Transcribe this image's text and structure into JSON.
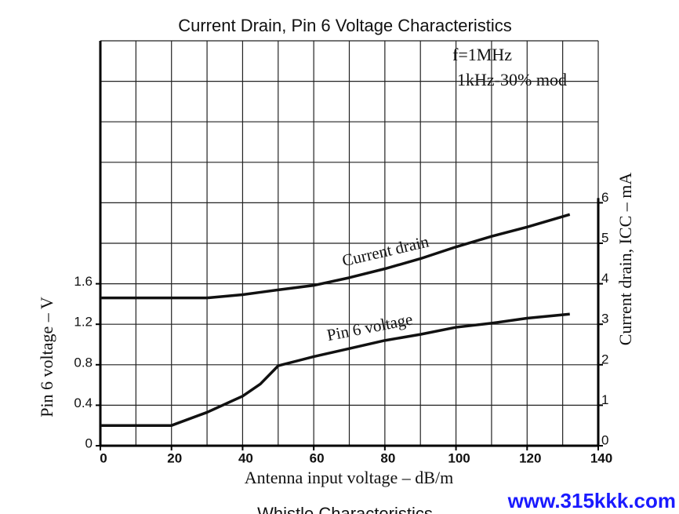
{
  "chart_data": {
    "type": "line",
    "top_cut_text": "Whistle Characteristics",
    "title": "Current Drain, Pin 6 Voltage Characteristics",
    "xlabel": "Antenna input voltage  –  dB/m",
    "ylabel": "Pin 6 voltage  –  V",
    "y2label": "Current drain, ICC  –  mA",
    "annotations": [
      "f=1MHz",
      "1kHz-30% mod"
    ],
    "watermark": "www.315kkk.com",
    "x": [
      0,
      10,
      20,
      30,
      40,
      45,
      50,
      60,
      70,
      80,
      90,
      100,
      110,
      120,
      132
    ],
    "series": [
      {
        "name": "Current drain",
        "color": "#111111",
        "axis": "y2",
        "values": [
          3.65,
          3.65,
          3.65,
          3.65,
          3.73,
          3.79,
          3.85,
          3.96,
          4.15,
          4.37,
          4.62,
          4.91,
          5.17,
          5.4,
          5.71
        ]
      },
      {
        "name": "Pin 6 voltage",
        "color": "#111111",
        "axis": "y",
        "values": [
          0.2,
          0.2,
          0.2,
          0.33,
          0.49,
          0.61,
          0.79,
          0.88,
          0.96,
          1.04,
          1.1,
          1.17,
          1.21,
          1.26,
          1.3
        ]
      }
    ],
    "xlim": [
      0,
      140
    ],
    "xticks": [
      0,
      20,
      40,
      60,
      80,
      100,
      120,
      140
    ],
    "xgrid": [
      0,
      10,
      20,
      30,
      40,
      50,
      60,
      70,
      80,
      90,
      100,
      110,
      120,
      130,
      140
    ],
    "ylim": [
      0,
      4
    ],
    "yticks": [
      0,
      0.4,
      0.8,
      1.2,
      1.6
    ],
    "ygrid": [
      0,
      0.4,
      0.8,
      1.2,
      1.6,
      2,
      2.4,
      2.8,
      3.2,
      3.6,
      4
    ],
    "y2lim": [
      0,
      10
    ],
    "y2ticks": [
      0,
      1,
      2,
      3,
      4,
      5,
      6
    ],
    "grid": true
  }
}
